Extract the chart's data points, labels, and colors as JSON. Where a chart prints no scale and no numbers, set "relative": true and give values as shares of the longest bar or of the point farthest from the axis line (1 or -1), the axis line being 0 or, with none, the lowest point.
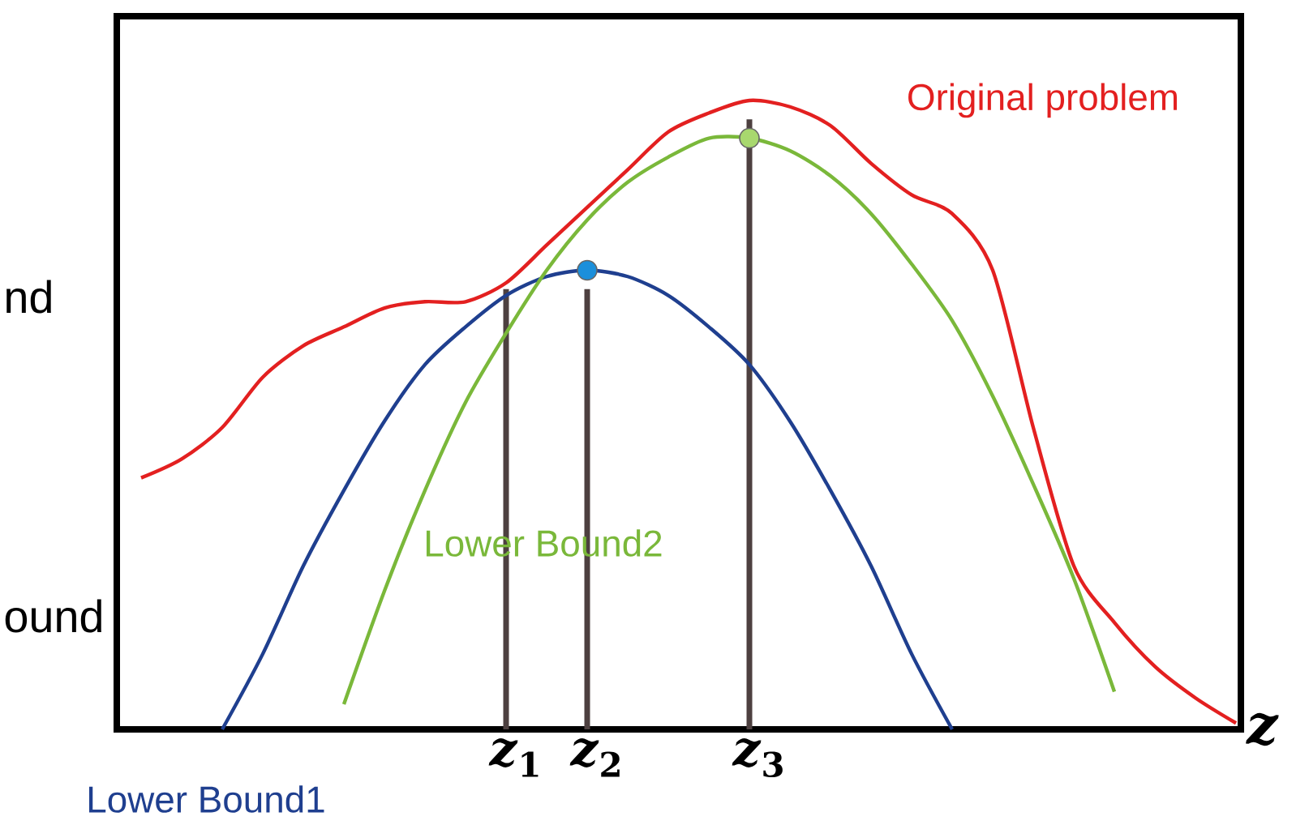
{
  "chart_data": {
    "type": "line",
    "relative": true,
    "xlabel": "z",
    "categories": [
      null,
      null,
      null,
      null,
      null,
      null,
      null,
      null,
      null,
      "*z*$_{1}$",
      null,
      "*z*$_{2}$",
      null,
      null,
      null,
      "*z*$_{3}$",
      null,
      null,
      null,
      null,
      null,
      null,
      null,
      null,
      null,
      null,
      null,
      null
    ],
    "tick_labels": "x",
    "legend": false,
    "marker": "none",
    "line_style": "solid",
    "annotations": [
      "nd",
      "ound"
    ],
    "series": [
      {
        "name": "Original problem",
        "color": "#e32020",
        "values": [
          0.4,
          0.43,
          0.48,
          0.56,
          0.61,
          0.64,
          0.67,
          0.68,
          0.68,
          0.71,
          0.77,
          0.83,
          0.89,
          0.95,
          0.98,
          1.0,
          0.99,
          0.96,
          0.9,
          0.85,
          0.82,
          0.73,
          0.48,
          0.26,
          0.17,
          0.1,
          0.05,
          0.01
        ]
      },
      {
        "name": "Lower Bound1",
        "color": "#1f3f8f",
        "values": [
          null,
          null,
          0.0,
          0.12,
          0.26,
          0.38,
          0.49,
          0.58,
          0.64,
          0.69,
          0.72,
          0.73,
          0.72,
          0.69,
          0.64,
          0.58,
          0.49,
          0.38,
          0.26,
          0.12,
          0.0,
          null,
          null,
          null,
          null,
          null,
          null,
          null
        ]
      },
      {
        "name": "Lower Bound2",
        "color": "#7ab83a",
        "values": [
          null,
          null,
          null,
          null,
          null,
          0.04,
          0.22,
          0.38,
          0.52,
          0.63,
          0.73,
          0.81,
          0.87,
          0.91,
          0.94,
          0.94,
          0.92,
          0.88,
          0.82,
          0.74,
          0.65,
          0.53,
          0.39,
          0.24,
          0.06,
          null,
          null,
          null
        ]
      },
      {
        "type": "bar",
        "color": "#4d4040",
        "values": [
          null,
          null,
          null,
          null,
          null,
          null,
          null,
          null,
          null,
          0.7,
          null,
          0.7,
          null,
          null,
          null,
          0.97,
          null,
          null,
          null,
          null,
          null,
          null,
          null,
          null,
          null,
          null,
          null,
          null
        ]
      },
      {
        "type": "scatter",
        "marker": "circle",
        "color": "#1b8fdb",
        "values": [
          null,
          null,
          null,
          null,
          null,
          null,
          null,
          null,
          null,
          null,
          null,
          0.73,
          null,
          null,
          null,
          null,
          null,
          null,
          null,
          null,
          null,
          null,
          null,
          null,
          null,
          null,
          null,
          null
        ]
      },
      {
        "type": "scatter",
        "marker": "circle",
        "color": "#a8d86e",
        "values": [
          null,
          null,
          null,
          null,
          null,
          null,
          null,
          null,
          null,
          null,
          null,
          null,
          null,
          null,
          null,
          0.94,
          null,
          null,
          null,
          null,
          null,
          null,
          null,
          null,
          null,
          null,
          null,
          null
        ]
      }
    ]
  }
}
